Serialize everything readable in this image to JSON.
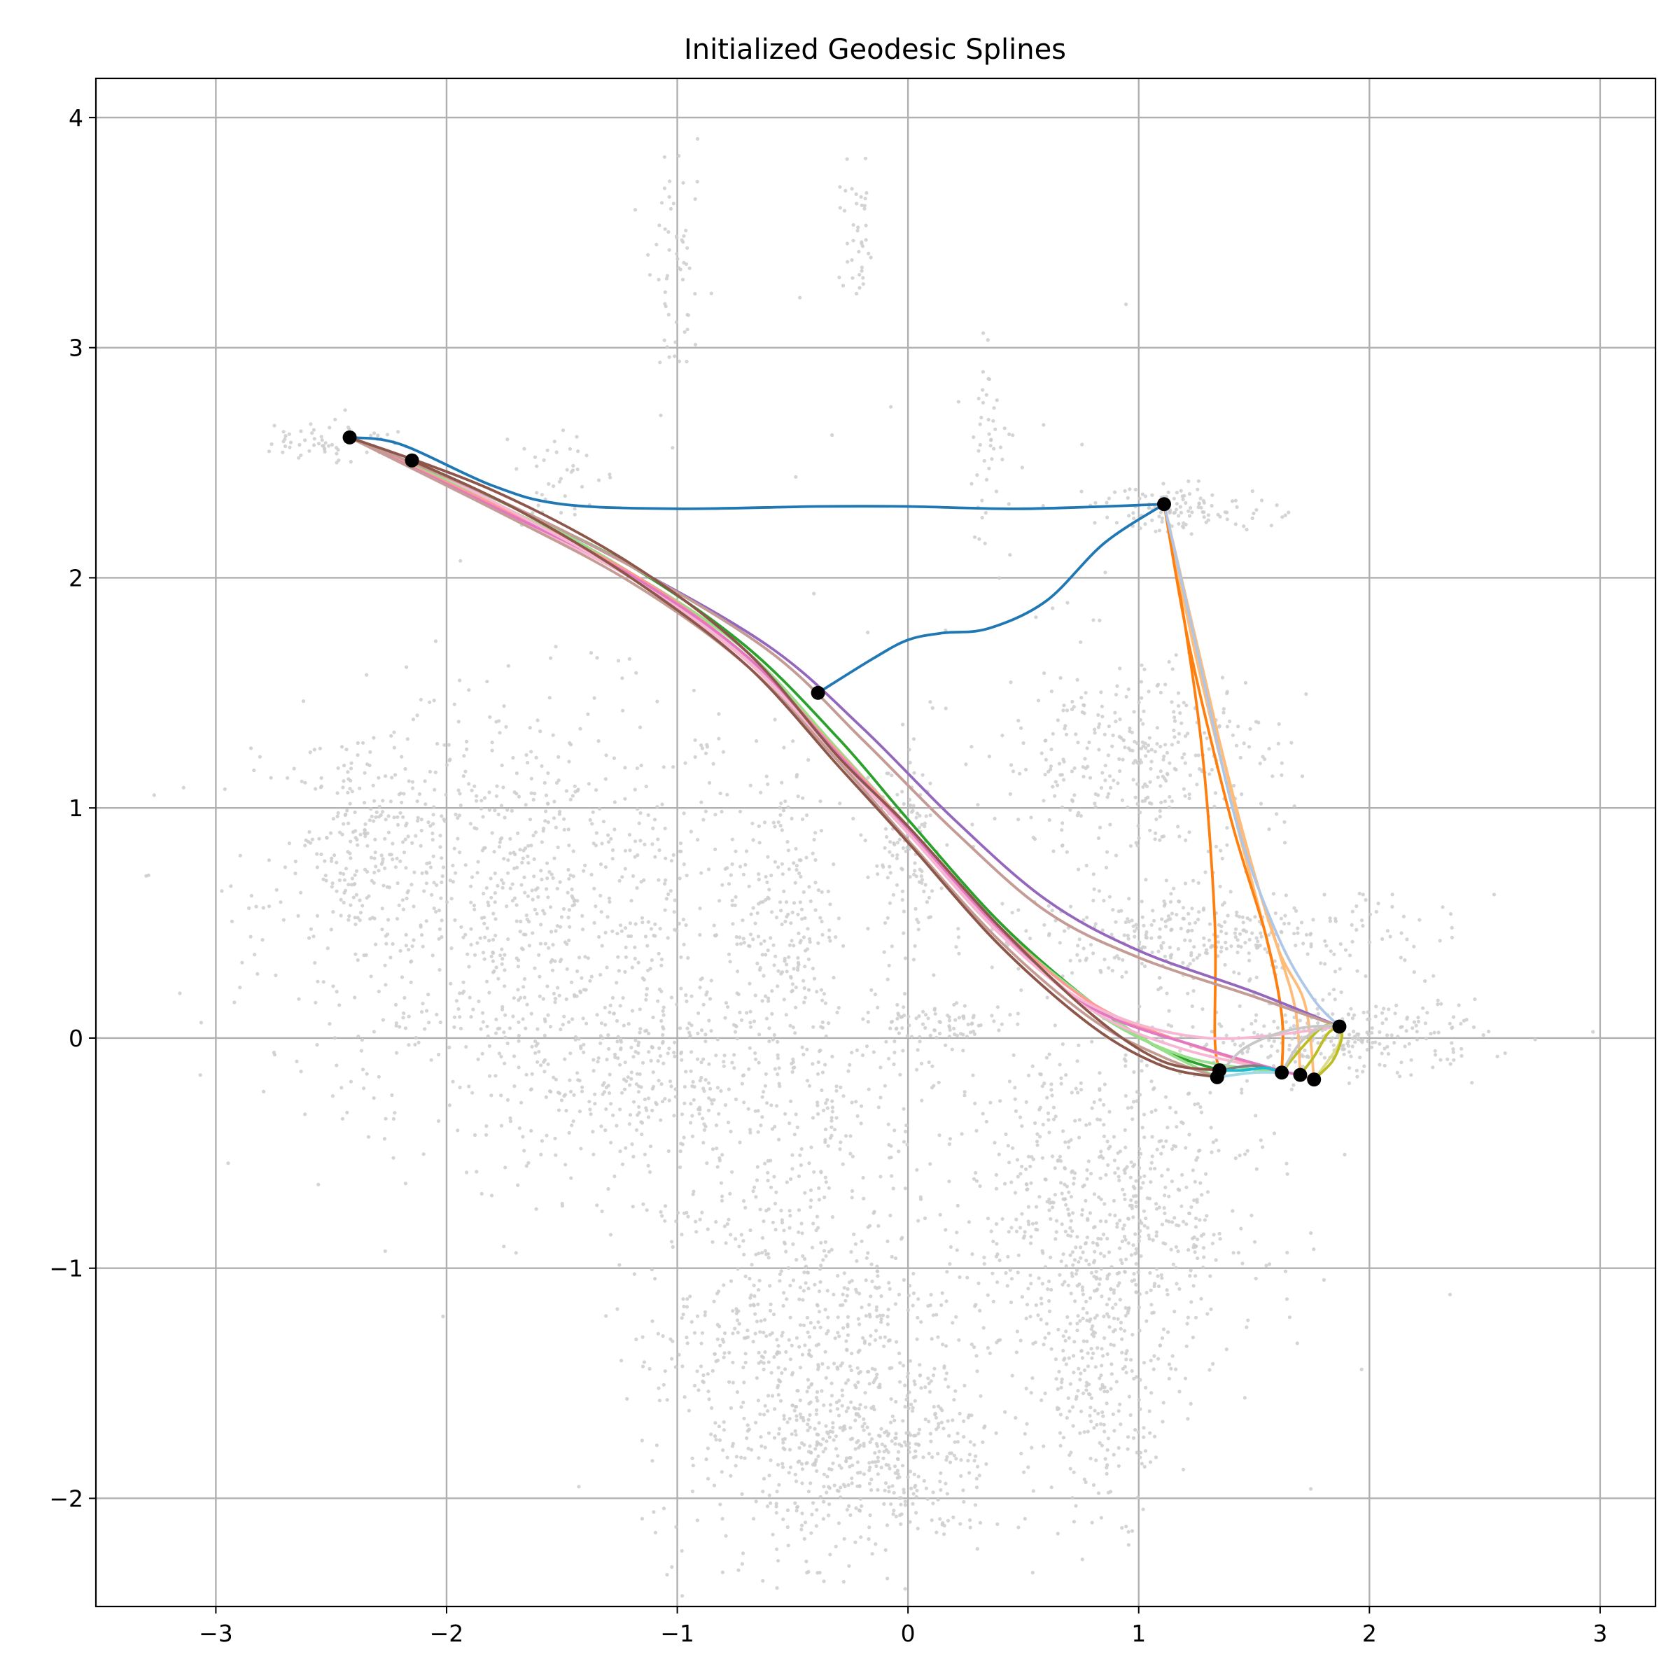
{
  "chart_data": {
    "type": "scatter",
    "title": "Initialized Geodesic Splines",
    "xlabel": "",
    "ylabel": "",
    "xlim": [
      -3.52,
      3.24
    ],
    "ylim": [
      -2.47,
      4.17
    ],
    "grid": true,
    "xticks": [
      -3,
      -2,
      -1,
      0,
      1,
      2,
      3
    ],
    "xtick_labels": [
      "−3",
      "−2",
      "−1",
      "0",
      "1",
      "2",
      "3"
    ],
    "yticks": [
      -2,
      -1,
      0,
      1,
      2,
      3,
      4
    ],
    "ytick_labels": [
      "−2",
      "−1",
      "0",
      "1",
      "2",
      "3",
      "4"
    ],
    "colors": {
      "background_points": "#cccccc",
      "key_points": "#000000",
      "grid": "#b0b0b0"
    },
    "background_clusters": [
      {
        "cx": -1.7,
        "cy": 0.6,
        "sx": 0.55,
        "sy": 0.45,
        "n": 900
      },
      {
        "cx": -1.0,
        "cy": -0.2,
        "sx": 0.55,
        "sy": 0.25,
        "n": 500
      },
      {
        "cx": -2.4,
        "cy": 0.85,
        "sx": 0.12,
        "sy": 0.22,
        "n": 150
      },
      {
        "cx": -0.55,
        "cy": 0.55,
        "sx": 0.12,
        "sy": 0.35,
        "n": 200
      },
      {
        "cx": -0.45,
        "cy": -1.35,
        "sx": 0.35,
        "sy": 0.45,
        "n": 800
      },
      {
        "cx": -0.1,
        "cy": -1.85,
        "sx": 0.25,
        "sy": 0.2,
        "n": 300
      },
      {
        "cx": 0.85,
        "cy": -0.75,
        "sx": 0.35,
        "sy": 0.4,
        "n": 700
      },
      {
        "cx": 0.85,
        "cy": -1.45,
        "sx": 0.15,
        "sy": 0.3,
        "n": 250
      },
      {
        "cx": 1.0,
        "cy": 1.2,
        "sx": 0.3,
        "sy": 0.22,
        "n": 350
      },
      {
        "cx": 1.3,
        "cy": 0.45,
        "sx": 0.5,
        "sy": 0.1,
        "n": 350
      },
      {
        "cx": 1.9,
        "cy": 0.0,
        "sx": 0.3,
        "sy": 0.08,
        "n": 250
      },
      {
        "cx": 0.0,
        "cy": 0.8,
        "sx": 0.08,
        "sy": 0.2,
        "n": 120
      },
      {
        "cx": 0.1,
        "cy": 0.05,
        "sx": 0.15,
        "sy": 0.06,
        "n": 80
      },
      {
        "cx": 1.2,
        "cy": 2.3,
        "sx": 0.2,
        "sy": 0.05,
        "n": 120
      },
      {
        "cx": -2.5,
        "cy": 2.6,
        "sx": 0.15,
        "sy": 0.05,
        "n": 60
      },
      {
        "cx": -1.0,
        "cy": 3.3,
        "sx": 0.06,
        "sy": 0.25,
        "n": 60
      },
      {
        "cx": -0.22,
        "cy": 3.45,
        "sx": 0.04,
        "sy": 0.15,
        "n": 40
      },
      {
        "cx": 0.35,
        "cy": 2.6,
        "sx": 0.05,
        "sy": 0.18,
        "n": 40
      },
      {
        "cx": -1.5,
        "cy": 2.45,
        "sx": 0.1,
        "sy": 0.12,
        "n": 40
      },
      {
        "cx": -0.35,
        "cy": -0.35,
        "sx": 0.03,
        "sy": 0.08,
        "n": 20
      },
      {
        "cx": 0.2,
        "cy": 1.8,
        "sx": 0.6,
        "sy": 0.6,
        "n": 40
      }
    ],
    "key_points": [
      {
        "x": -2.42,
        "y": 2.61
      },
      {
        "x": -2.15,
        "y": 2.51
      },
      {
        "x": -0.39,
        "y": 1.5
      },
      {
        "x": 1.11,
        "y": 2.32
      },
      {
        "x": 1.87,
        "y": 0.05
      },
      {
        "x": 1.35,
        "y": -0.14
      },
      {
        "x": 1.34,
        "y": -0.17
      },
      {
        "x": 1.62,
        "y": -0.15
      },
      {
        "x": 1.7,
        "y": -0.16
      },
      {
        "x": 1.76,
        "y": -0.18
      }
    ],
    "series": [
      {
        "color": "#1f77b4",
        "points": [
          [
            -2.42,
            2.61
          ],
          [
            -2.2,
            2.58
          ],
          [
            -1.8,
            2.4
          ],
          [
            -1.5,
            2.32
          ],
          [
            -1.0,
            2.3
          ],
          [
            -0.4,
            2.31
          ],
          [
            0.0,
            2.31
          ],
          [
            0.5,
            2.3
          ],
          [
            1.11,
            2.32
          ]
        ]
      },
      {
        "color": "#1f77b4",
        "points": [
          [
            1.11,
            2.32
          ],
          [
            0.85,
            2.15
          ],
          [
            0.6,
            1.9
          ],
          [
            0.35,
            1.78
          ],
          [
            0.15,
            1.76
          ],
          [
            0.0,
            1.73
          ],
          [
            -0.15,
            1.65
          ],
          [
            -0.39,
            1.5
          ]
        ]
      },
      {
        "color": "#ff7f0e",
        "points": [
          [
            1.11,
            2.32
          ],
          [
            1.2,
            1.8
          ],
          [
            1.28,
            1.2
          ],
          [
            1.33,
            0.5
          ],
          [
            1.33,
            0.0
          ],
          [
            1.35,
            -0.14
          ]
        ]
      },
      {
        "color": "#ffbb78",
        "points": [
          [
            1.11,
            2.32
          ],
          [
            1.25,
            1.7
          ],
          [
            1.45,
            0.9
          ],
          [
            1.6,
            0.4
          ],
          [
            1.72,
            0.15
          ],
          [
            1.76,
            -0.18
          ]
        ]
      },
      {
        "color": "#ffbb78",
        "points": [
          [
            1.11,
            2.32
          ],
          [
            1.25,
            1.65
          ],
          [
            1.42,
            0.95
          ],
          [
            1.55,
            0.45
          ],
          [
            1.62,
            0.1
          ],
          [
            1.62,
            -0.15
          ]
        ]
      },
      {
        "color": "#ff7f0e",
        "points": [
          [
            1.11,
            2.32
          ],
          [
            1.22,
            1.7
          ],
          [
            1.4,
            0.95
          ],
          [
            1.55,
            0.45
          ],
          [
            1.62,
            0.1
          ],
          [
            1.62,
            -0.15
          ]
        ]
      },
      {
        "color": "#ffbb78",
        "points": [
          [
            1.11,
            2.32
          ],
          [
            1.26,
            1.68
          ],
          [
            1.44,
            0.92
          ],
          [
            1.6,
            0.4
          ],
          [
            1.68,
            0.12
          ],
          [
            1.7,
            -0.16
          ]
        ]
      },
      {
        "color": "#aec7e8",
        "points": [
          [
            1.11,
            2.32
          ],
          [
            1.25,
            1.7
          ],
          [
            1.42,
            0.95
          ],
          [
            1.6,
            0.45
          ],
          [
            1.75,
            0.18
          ],
          [
            1.87,
            0.05
          ]
        ]
      },
      {
        "color": "#2ca02c",
        "points": [
          [
            -2.15,
            2.51
          ],
          [
            -1.7,
            2.3
          ],
          [
            -1.2,
            2.05
          ],
          [
            -0.7,
            1.7
          ],
          [
            -0.3,
            1.3
          ],
          [
            0.0,
            0.95
          ],
          [
            0.4,
            0.5
          ],
          [
            0.8,
            0.15
          ],
          [
            1.1,
            -0.05
          ],
          [
            1.35,
            -0.14
          ]
        ]
      },
      {
        "color": "#9467bd",
        "points": [
          [
            -2.42,
            2.61
          ],
          [
            -1.8,
            2.35
          ],
          [
            -1.2,
            2.05
          ],
          [
            -0.6,
            1.7
          ],
          [
            -0.2,
            1.35
          ],
          [
            0.2,
            0.95
          ],
          [
            0.6,
            0.6
          ],
          [
            1.0,
            0.38
          ],
          [
            1.5,
            0.2
          ],
          [
            1.87,
            0.05
          ]
        ]
      },
      {
        "color": "#c5b0d5",
        "points": [
          [
            -2.42,
            2.61
          ],
          [
            -1.8,
            2.35
          ],
          [
            -1.2,
            2.05
          ],
          [
            -0.6,
            1.68
          ],
          [
            -0.2,
            1.3
          ],
          [
            0.2,
            0.9
          ],
          [
            0.6,
            0.55
          ],
          [
            1.0,
            0.35
          ],
          [
            1.5,
            0.18
          ],
          [
            1.87,
            0.05
          ]
        ]
      },
      {
        "color": "#98df8a",
        "points": [
          [
            -2.42,
            2.61
          ],
          [
            -1.8,
            2.33
          ],
          [
            -1.2,
            2.02
          ],
          [
            -0.7,
            1.68
          ],
          [
            -0.3,
            1.25
          ],
          [
            0.0,
            0.92
          ],
          [
            0.4,
            0.48
          ],
          [
            0.8,
            0.15
          ],
          [
            1.1,
            -0.05
          ],
          [
            1.34,
            -0.17
          ]
        ]
      },
      {
        "color": "#98df8a",
        "points": [
          [
            -2.15,
            2.51
          ],
          [
            -1.7,
            2.3
          ],
          [
            -1.2,
            2.02
          ],
          [
            -0.7,
            1.66
          ],
          [
            -0.3,
            1.24
          ],
          [
            0.0,
            0.9
          ],
          [
            0.4,
            0.47
          ],
          [
            0.8,
            0.12
          ],
          [
            1.2,
            -0.08
          ],
          [
            1.62,
            -0.15
          ]
        ]
      },
      {
        "color": "#ff9896",
        "points": [
          [
            -2.42,
            2.61
          ],
          [
            -1.8,
            2.32
          ],
          [
            -1.2,
            2.02
          ],
          [
            -0.7,
            1.66
          ],
          [
            -0.3,
            1.24
          ],
          [
            0.0,
            0.92
          ],
          [
            0.4,
            0.48
          ],
          [
            0.8,
            0.15
          ],
          [
            1.2,
            -0.02
          ],
          [
            1.62,
            -0.15
          ]
        ]
      },
      {
        "color": "#f7b6d2",
        "points": [
          [
            -2.42,
            2.61
          ],
          [
            -1.8,
            2.3
          ],
          [
            -1.2,
            2.0
          ],
          [
            -0.7,
            1.65
          ],
          [
            -0.3,
            1.22
          ],
          [
            0.0,
            0.9
          ],
          [
            0.4,
            0.46
          ],
          [
            0.8,
            0.12
          ],
          [
            1.2,
            -0.05
          ],
          [
            1.7,
            -0.16
          ]
        ]
      },
      {
        "color": "#e377c2",
        "points": [
          [
            -2.42,
            2.61
          ],
          [
            -1.8,
            2.31
          ],
          [
            -1.2,
            2.01
          ],
          [
            -0.7,
            1.66
          ],
          [
            -0.3,
            1.23
          ],
          [
            0.0,
            0.91
          ],
          [
            0.4,
            0.47
          ],
          [
            0.8,
            0.13
          ],
          [
            1.3,
            -0.05
          ],
          [
            1.76,
            -0.18
          ]
        ]
      },
      {
        "color": "#f7b6d2",
        "points": [
          [
            -2.15,
            2.51
          ],
          [
            -1.7,
            2.28
          ],
          [
            -1.2,
            2.0
          ],
          [
            -0.7,
            1.64
          ],
          [
            -0.3,
            1.21
          ],
          [
            0.0,
            0.89
          ],
          [
            0.4,
            0.45
          ],
          [
            0.8,
            0.14
          ],
          [
            1.3,
            0.0
          ],
          [
            1.87,
            0.05
          ]
        ]
      },
      {
        "color": "#c49c94",
        "points": [
          [
            -2.42,
            2.61
          ],
          [
            -1.8,
            2.3
          ],
          [
            -1.2,
            1.98
          ],
          [
            -0.7,
            1.62
          ],
          [
            -0.3,
            1.2
          ],
          [
            0.0,
            0.86
          ],
          [
            0.4,
            0.42
          ],
          [
            0.8,
            0.08
          ],
          [
            1.1,
            -0.08
          ],
          [
            1.34,
            -0.17
          ]
        ]
      },
      {
        "color": "#c49c94",
        "points": [
          [
            -2.42,
            2.61
          ],
          [
            -1.8,
            2.35
          ],
          [
            -1.2,
            2.05
          ],
          [
            -0.6,
            1.68
          ],
          [
            -0.2,
            1.3
          ],
          [
            0.2,
            0.9
          ],
          [
            0.6,
            0.55
          ],
          [
            1.0,
            0.35
          ],
          [
            1.5,
            0.18
          ],
          [
            1.87,
            0.05
          ]
        ]
      },
      {
        "color": "#8c564b",
        "points": [
          [
            -2.42,
            2.61
          ],
          [
            -1.8,
            2.38
          ],
          [
            -1.2,
            2.06
          ],
          [
            -0.7,
            1.68
          ],
          [
            -0.3,
            1.22
          ],
          [
            0.0,
            0.92
          ],
          [
            0.4,
            0.48
          ],
          [
            0.8,
            0.1
          ],
          [
            1.1,
            -0.1
          ],
          [
            1.35,
            -0.14
          ]
        ]
      },
      {
        "color": "#8c564b",
        "points": [
          [
            -2.15,
            2.51
          ],
          [
            -1.7,
            2.3
          ],
          [
            -1.2,
            2.0
          ],
          [
            -0.7,
            1.62
          ],
          [
            -0.3,
            1.18
          ],
          [
            0.0,
            0.85
          ],
          [
            0.4,
            0.4
          ],
          [
            0.8,
            0.05
          ],
          [
            1.1,
            -0.12
          ],
          [
            1.34,
            -0.17
          ]
        ]
      },
      {
        "color": "#7f7f7f",
        "points": [
          [
            1.35,
            -0.14
          ],
          [
            1.5,
            -0.12
          ],
          [
            1.62,
            -0.15
          ]
        ]
      },
      {
        "color": "#c7c7c7",
        "points": [
          [
            1.34,
            -0.17
          ],
          [
            1.45,
            -0.05
          ],
          [
            1.6,
            0.02
          ],
          [
            1.75,
            0.05
          ],
          [
            1.87,
            0.05
          ]
        ]
      },
      {
        "color": "#17becf",
        "points": [
          [
            1.35,
            -0.14
          ],
          [
            1.45,
            -0.14
          ],
          [
            1.55,
            -0.13
          ],
          [
            1.62,
            -0.15
          ]
        ]
      },
      {
        "color": "#9edae5",
        "points": [
          [
            1.34,
            -0.17
          ],
          [
            1.5,
            -0.15
          ],
          [
            1.62,
            -0.15
          ]
        ]
      },
      {
        "color": "#bcbd22",
        "points": [
          [
            1.62,
            -0.15
          ],
          [
            1.7,
            -0.05
          ],
          [
            1.8,
            0.05
          ],
          [
            1.87,
            0.05
          ]
        ]
      },
      {
        "color": "#bcbd22",
        "points": [
          [
            1.7,
            -0.16
          ],
          [
            1.76,
            -0.08
          ],
          [
            1.82,
            0.02
          ],
          [
            1.87,
            0.05
          ]
        ]
      },
      {
        "color": "#dbdb8d",
        "points": [
          [
            1.76,
            -0.18
          ],
          [
            1.82,
            -0.1
          ],
          [
            1.87,
            -0.02
          ],
          [
            1.87,
            0.05
          ]
        ]
      },
      {
        "color": "#bcbd22",
        "points": [
          [
            1.76,
            -0.18
          ],
          [
            1.84,
            -0.1
          ],
          [
            1.88,
            0.0
          ],
          [
            1.87,
            0.05
          ]
        ]
      },
      {
        "color": "#c7c7c7",
        "points": [
          [
            1.62,
            -0.15
          ],
          [
            1.7,
            -0.02
          ],
          [
            1.8,
            0.05
          ],
          [
            1.87,
            0.05
          ]
        ]
      }
    ]
  }
}
